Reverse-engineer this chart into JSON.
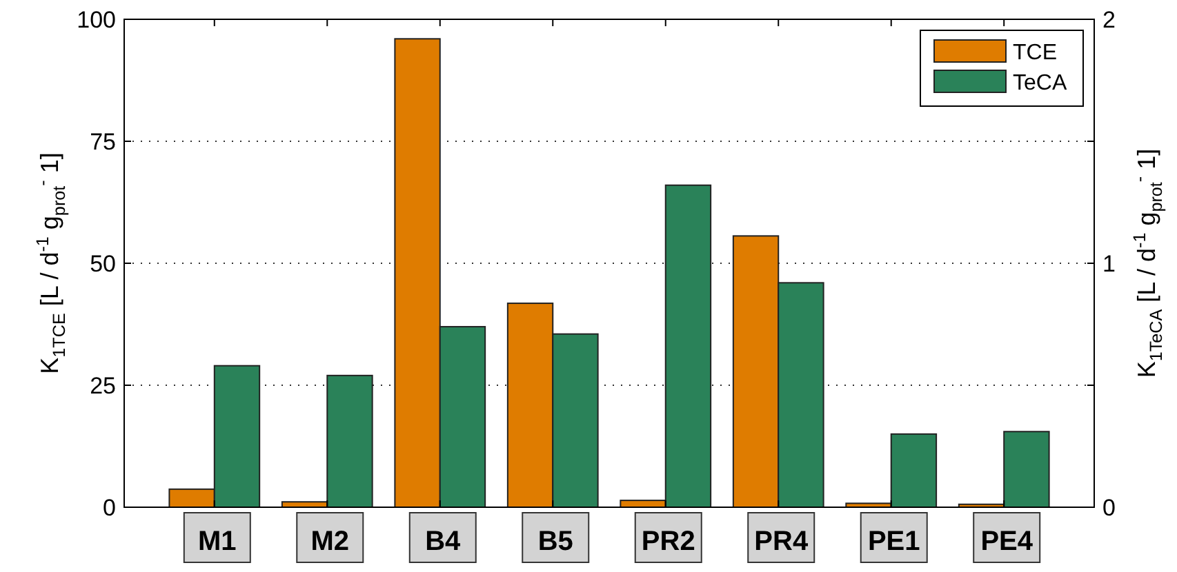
{
  "chart_data": {
    "type": "bar",
    "categories": [
      "M1",
      "M2",
      "B4",
      "B5",
      "PR2",
      "PR4",
      "PE1",
      "PE4"
    ],
    "ylabel": "K$_{1TCE}$ [L / d$^{-1}$  g$_{prot}$$^{-}$ 1]",
    "y2label": "K$_{1TeCA}$ [L / d$^{-1}$  g$_{prot}$$^{-}$ 1]",
    "series": [
      {
        "name": "TCE",
        "color": "#df7c00",
        "values": [
          3.7,
          1.1,
          96.0,
          41.8,
          1.4,
          55.6,
          0.8,
          0.6
        ]
      },
      {
        "name": "TeCA",
        "color": "#2a8259",
        "axis": "y2",
        "values": [
          0.58,
          0.54,
          0.74,
          0.71,
          1.32,
          0.92,
          0.3,
          0.31
        ]
      }
    ],
    "ylim": [
      0,
      100
    ],
    "yticks": [
      0,
      25,
      50,
      75,
      100
    ],
    "y2lim": [
      0,
      2
    ],
    "y2ticks": [
      0,
      {
        "value": 0.5,
        "label": null
      },
      1,
      {
        "value": 1.5,
        "label": null
      },
      2
    ],
    "grid": "y",
    "legend": "top right"
  }
}
